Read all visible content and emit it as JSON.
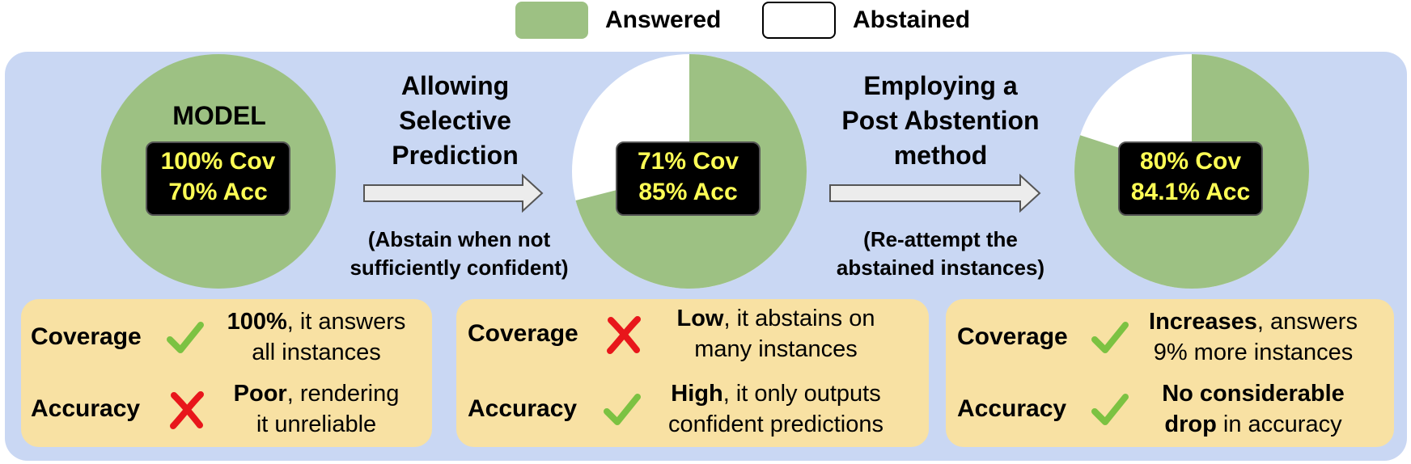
{
  "legend": {
    "answered": {
      "label": "Answered",
      "color": "#9dc183"
    },
    "abstained": {
      "label": "Abstained",
      "color": "#ffffff"
    }
  },
  "model": {
    "label": "MODEL",
    "coverage_text": "100% Cov",
    "accuracy_text": "70% Acc",
    "answered_fraction": 1.0
  },
  "step1": {
    "title_lines": [
      "Allowing",
      "Selective",
      "Prediction"
    ],
    "note_lines": [
      "(Abstain when not",
      "sufficiently confident)"
    ],
    "coverage_text": "71% Cov",
    "accuracy_text": "85% Acc",
    "answered_fraction": 0.71
  },
  "step2": {
    "title_lines": [
      "Employing a",
      "Post Abstention",
      "method"
    ],
    "note_lines": [
      "(Re-attempt the",
      "abstained instances)"
    ],
    "coverage_text": "80% Cov",
    "accuracy_text": "84.1% Acc",
    "answered_fraction": 0.8
  },
  "cards": [
    {
      "coverage": {
        "metric": "Coverage",
        "mark": "check",
        "bold": "100%",
        "rest": ", it answers",
        "line2": "all instances"
      },
      "accuracy": {
        "metric": "Accuracy",
        "mark": "cross",
        "bold": "Poor",
        "rest": ", rendering",
        "line2": "it unreliable"
      }
    },
    {
      "coverage": {
        "metric": "Coverage",
        "mark": "cross",
        "bold": "Low",
        "rest": ", it abstains on",
        "line2": "many instances"
      },
      "accuracy": {
        "metric": "Accuracy",
        "mark": "check",
        "bold": "High",
        "rest": ", it only outputs",
        "line2": "confident predictions"
      }
    },
    {
      "coverage": {
        "metric": "Coverage",
        "mark": "check",
        "bold": "Increases",
        "rest": ", answers",
        "line2": "9% more instances"
      },
      "accuracy": {
        "metric": "Accuracy",
        "mark": "check",
        "bold": "No considerable",
        "rest": "",
        "line2_bold": "drop",
        "line2": " in accuracy"
      }
    }
  ],
  "colors": {
    "panel": "#c9d7f3",
    "card": "#f8e1a3",
    "check": "#7cc242",
    "cross": "#e8161b",
    "stats_text": "#ffff55"
  }
}
